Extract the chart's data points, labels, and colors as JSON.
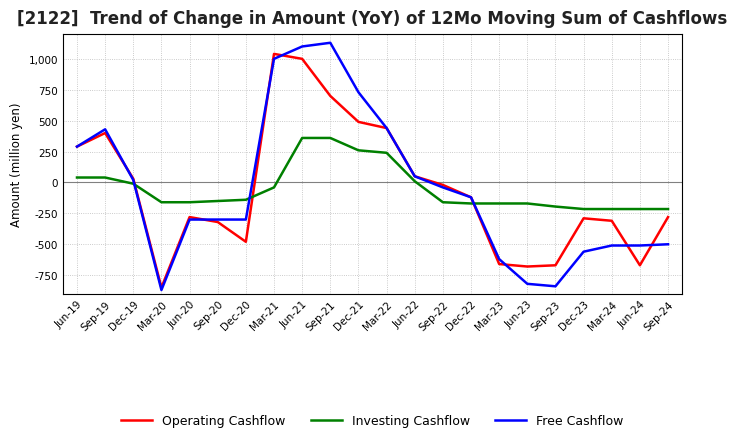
{
  "title": "[2122]  Trend of Change in Amount (YoY) of 12Mo Moving Sum of Cashflows",
  "ylabel": "Amount (million yen)",
  "x_labels": [
    "Jun-19",
    "Sep-19",
    "Dec-19",
    "Mar-20",
    "Jun-20",
    "Sep-20",
    "Dec-20",
    "Mar-21",
    "Jun-21",
    "Sep-21",
    "Dec-21",
    "Mar-22",
    "Jun-22",
    "Sep-22",
    "Dec-22",
    "Mar-23",
    "Jun-23",
    "Sep-23",
    "Dec-23",
    "Mar-24",
    "Jun-24",
    "Sep-24"
  ],
  "operating_cashflow": [
    290,
    400,
    30,
    -850,
    -280,
    -320,
    -480,
    1040,
    1000,
    700,
    490,
    440,
    50,
    -20,
    -120,
    -660,
    -680,
    -670,
    -290,
    -310,
    -670,
    -280
  ],
  "investing_cashflow": [
    40,
    40,
    -10,
    -160,
    -160,
    -150,
    -140,
    -40,
    360,
    360,
    260,
    240,
    10,
    -160,
    -170,
    -170,
    -170,
    -195,
    -215,
    -215,
    -215,
    -215
  ],
  "free_cashflow": [
    290,
    430,
    20,
    -870,
    -300,
    -300,
    -300,
    1000,
    1100,
    1130,
    730,
    440,
    50,
    -40,
    -120,
    -620,
    -820,
    -840,
    -560,
    -510,
    -510,
    -500
  ],
  "operating_color": "#ff0000",
  "investing_color": "#008000",
  "free_color": "#0000ff",
  "background_color": "#ffffff",
  "grid_color": "#bbbbbb",
  "ylim": [
    -900,
    1200
  ],
  "yticks": [
    -750,
    -500,
    -250,
    0,
    250,
    500,
    750,
    1000
  ],
  "linewidth": 1.8,
  "title_fontsize": 12,
  "legend_fontsize": 9,
  "tick_fontsize": 7.5
}
